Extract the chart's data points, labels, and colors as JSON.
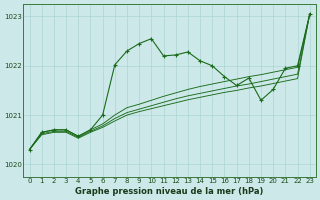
{
  "background_color": "#cce8e8",
  "grid_color": "#aad4d4",
  "line_color": "#1a6b1a",
  "xlabel": "Graphe pression niveau de la mer (hPa)",
  "ylim": [
    1019.75,
    1023.25
  ],
  "y_ticks": [
    1020,
    1021,
    1022,
    1023
  ],
  "x_ticks": [
    0,
    1,
    2,
    3,
    4,
    5,
    6,
    7,
    8,
    9,
    10,
    11,
    12,
    13,
    14,
    15,
    16,
    17,
    18,
    19,
    20,
    21,
    22,
    23
  ],
  "series_main": [
    1020.3,
    1020.65,
    1020.7,
    1020.7,
    1020.57,
    1020.7,
    1021.0,
    1022.02,
    1022.3,
    1022.45,
    1022.55,
    1022.2,
    1022.22,
    1022.28,
    1022.1,
    1022.0,
    1021.78,
    1021.6,
    1021.75,
    1021.3,
    1021.52,
    1021.95,
    1022.0,
    1023.05
  ],
  "series_lin1": [
    1020.3,
    1020.65,
    1020.7,
    1020.7,
    1020.57,
    1020.7,
    1020.82,
    1021.0,
    1021.15,
    1021.22,
    1021.3,
    1021.38,
    1021.45,
    1021.52,
    1021.58,
    1021.63,
    1021.68,
    1021.73,
    1021.78,
    1021.82,
    1021.87,
    1021.92,
    1021.97,
    1023.05
  ],
  "series_lin2": [
    1020.3,
    1020.62,
    1020.67,
    1020.67,
    1020.55,
    1020.67,
    1020.78,
    1020.93,
    1021.05,
    1021.12,
    1021.19,
    1021.26,
    1021.33,
    1021.39,
    1021.44,
    1021.49,
    1021.54,
    1021.59,
    1021.63,
    1021.68,
    1021.73,
    1021.78,
    1021.83,
    1023.05
  ],
  "series_lin3": [
    1020.3,
    1020.6,
    1020.65,
    1020.65,
    1020.53,
    1020.65,
    1020.75,
    1020.88,
    1021.0,
    1021.07,
    1021.13,
    1021.19,
    1021.25,
    1021.31,
    1021.36,
    1021.41,
    1021.46,
    1021.5,
    1021.55,
    1021.59,
    1021.64,
    1021.69,
    1021.74,
    1023.05
  ],
  "xlabel_fontsize": 6.0,
  "tick_fontsize": 5.0,
  "fig_width": 3.2,
  "fig_height": 2.0,
  "dpi": 100
}
